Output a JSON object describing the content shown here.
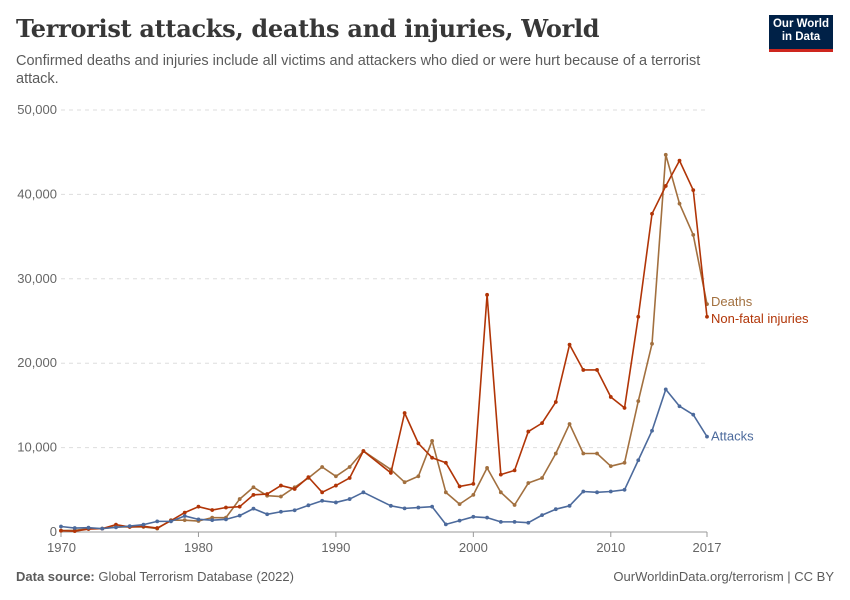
{
  "header": {
    "title": "Terrorist attacks, deaths and injuries, World",
    "subtitle": "Confirmed deaths and injuries include all victims and attackers who died or were hurt because of a terrorist attack.",
    "logo": "Our World in Data"
  },
  "footer": {
    "source_label": "Data source:",
    "source": "Global Terrorism Database (2022)",
    "link": "OurWorldinData.org/terrorism | CC BY"
  },
  "chart_data": {
    "type": "line",
    "title": "Terrorist attacks, deaths and injuries, World",
    "xlim": [
      1970,
      2017
    ],
    "ylim": [
      0,
      50000
    ],
    "x_ticks": [
      "1970",
      "1980",
      "1990",
      "2000",
      "2010",
      "2017"
    ],
    "y_ticks": [
      "0",
      "10,000",
      "20,000",
      "30,000",
      "40,000",
      "50,000"
    ],
    "grid": "horizontal dashed",
    "legend": "line-end labels",
    "x": [
      1970,
      1971,
      1972,
      1973,
      1974,
      1975,
      1976,
      1977,
      1978,
      1979,
      1980,
      1981,
      1982,
      1983,
      1984,
      1985,
      1986,
      1987,
      1988,
      1989,
      1990,
      1991,
      1992,
      1994,
      1995,
      1996,
      1997,
      1998,
      1999,
      2000,
      2001,
      2002,
      2003,
      2004,
      2005,
      2006,
      2007,
      2008,
      2009,
      2010,
      2011,
      2012,
      2013,
      2014,
      2015,
      2016,
      2017
    ],
    "series": [
      {
        "name": "Deaths",
        "color": "#a2703f",
        "values": [
          170,
          200,
          400,
          400,
          600,
          600,
          600,
          400,
          1400,
          1400,
          1300,
          1700,
          1700,
          3900,
          5300,
          4300,
          4200,
          5300,
          6400,
          7700,
          6600,
          7700,
          9600,
          7400,
          5900,
          6600,
          10800,
          4700,
          3300,
          4400,
          7600,
          4700,
          3200,
          5800,
          6400,
          9300,
          12800,
          9300,
          9300,
          7800,
          8200,
          15500,
          22300,
          44700,
          38900,
          35200,
          27000
        ]
      },
      {
        "name": "Non-fatal injuries",
        "color": "#b13507",
        "values": [
          150,
          100,
          350,
          400,
          870,
          600,
          670,
          470,
          1340,
          2300,
          3000,
          2600,
          2900,
          3000,
          4400,
          4500,
          5500,
          5100,
          6500,
          4700,
          5500,
          6400,
          9600,
          7000,
          14100,
          10500,
          8800,
          8200,
          5400,
          5700,
          28100,
          6800,
          7300,
          11900,
          12900,
          15400,
          22200,
          19200,
          19200,
          16000,
          14700,
          25500,
          37700,
          41000,
          44000,
          40500,
          25500
        ]
      },
      {
        "name": "Attacks",
        "color": "#4c6a9c",
        "values": [
          650,
          470,
          510,
          400,
          550,
          700,
          870,
          1260,
          1260,
          1900,
          1500,
          1400,
          1500,
          1940,
          2770,
          2100,
          2400,
          2570,
          3160,
          3700,
          3500,
          3900,
          4700,
          3100,
          2800,
          2900,
          3000,
          900,
          1350,
          1800,
          1700,
          1200,
          1200,
          1100,
          2000,
          2700,
          3100,
          4800,
          4700,
          4800,
          5000,
          8500,
          12000,
          16900,
          14900,
          13900,
          11300
        ]
      }
    ]
  }
}
